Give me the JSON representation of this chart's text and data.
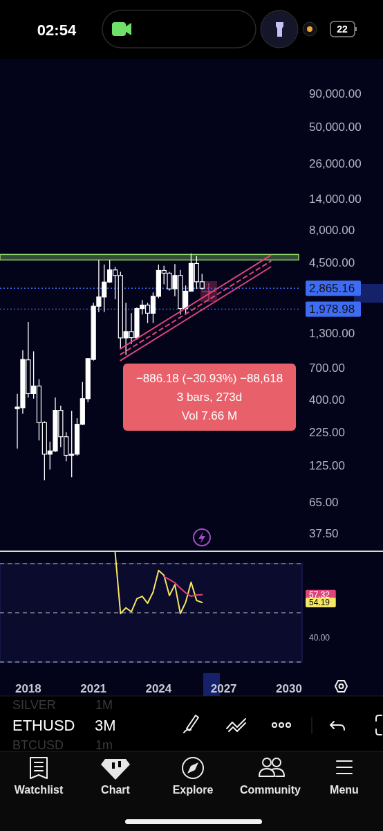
{
  "chart_data": [
    {
      "type": "candlestick",
      "log": true,
      "grid": false,
      "tick_labels": "y",
      "color": "#ffffff",
      "xlim": [
        "2016-09-13",
        "2034-05-01"
      ],
      "ylim": [
        27.3,
        160000
      ],
      "yticks": [
        {
          "value": 90000,
          "label": "90,000.00"
        },
        {
          "value": 50000,
          "label": "50,000.00"
        },
        {
          "value": 26000,
          "label": "26,000.00"
        },
        {
          "value": 14000,
          "label": "14,000.00"
        },
        {
          "value": 8000,
          "label": "8,000.00"
        },
        {
          "value": 4500,
          "label": "4,500.00"
        },
        {
          "value": 1300,
          "label": "1,300.00"
        },
        {
          "value": 700,
          "label": "700.00"
        },
        {
          "value": 400,
          "label": "400.00"
        },
        {
          "value": 225,
          "label": "225.00"
        },
        {
          "value": 125,
          "label": "125.00"
        },
        {
          "value": 65,
          "label": "65.00"
        },
        {
          "value": 37.5,
          "label": "37.50"
        }
      ],
      "x": [
        "2017-07",
        "2017-10",
        "2018-01",
        "2018-04",
        "2018-07",
        "2018-10",
        "2019-01",
        "2019-04",
        "2019-07",
        "2019-10",
        "2020-01",
        "2020-04",
        "2020-07",
        "2020-10",
        "2021-01",
        "2021-04",
        "2021-07",
        "2021-10",
        "2022-01",
        "2022-04",
        "2022-07",
        "2022-10",
        "2023-01",
        "2023-04",
        "2023-07",
        "2023-10",
        "2024-01",
        "2024-04",
        "2024-07",
        "2024-10",
        "2025-01",
        "2025-04",
        "2025-07",
        "2025-10",
        "2026-01"
      ],
      "ohlc": [
        [
          340,
          442,
          168,
          350
        ],
        [
          346,
          957,
          311,
          813
        ],
        [
          807,
          1578,
          414,
          444
        ],
        [
          444,
          938,
          406,
          508
        ],
        [
          508,
          574,
          194,
          266
        ],
        [
          266,
          272,
          96,
          152
        ],
        [
          152,
          190,
          116,
          161
        ],
        [
          161,
          414,
          158,
          330
        ],
        [
          330,
          359,
          172,
          207
        ],
        [
          207,
          224,
          134,
          149
        ],
        [
          149,
          327,
          101,
          152
        ],
        [
          152,
          287,
          148,
          258
        ],
        [
          258,
          547,
          255,
          406
        ],
        [
          406,
          830,
          382,
          825
        ],
        [
          813,
          2216,
          797,
          2085
        ],
        [
          2085,
          4725,
          1882,
          2455
        ],
        [
          2455,
          4354,
          1882,
          3200
        ],
        [
          3200,
          4725,
          3150,
          3964
        ],
        [
          3964,
          4178,
          2355,
          3592
        ],
        [
          3592,
          3837,
          978,
          1190
        ],
        [
          1190,
          2216,
          880,
          1330
        ],
        [
          1330,
          1842,
          1070,
          1195
        ],
        [
          1195,
          2040,
          1150,
          2000
        ],
        [
          2000,
          2328,
          1800,
          2127
        ],
        [
          2127,
          2216,
          1550,
          1842
        ],
        [
          1842,
          2663,
          1550,
          2485
        ],
        [
          2485,
          4354,
          2405,
          3927
        ],
        [
          3927,
          4264,
          3075,
          3742
        ],
        [
          3742,
          3837,
          2750,
          2831
        ],
        [
          2840,
          4406,
          2485,
          3592
        ],
        [
          3592,
          3964,
          1800,
          2000
        ],
        [
          2000,
          3011,
          1812,
          2720
        ],
        [
          2720,
          5300,
          2700,
          4445
        ],
        [
          4445,
          5070,
          2831,
          3215
        ],
        [
          3215,
          3700,
          2800,
          2865
        ]
      ],
      "series": [
        {
          "type": "line",
          "color": "#e0457a",
          "line_style": "solid",
          "x": [
            "2022-04-01",
            "2029-03-01"
          ],
          "values": [
            982,
            5140
          ]
        },
        {
          "type": "line",
          "color": "#e0457a",
          "line_style": "dashed",
          "x": [
            "2022-04-01",
            "2029-03-01"
          ],
          "values": [
            888,
            4630
          ]
        },
        {
          "type": "line",
          "color": "#e0457a",
          "line_style": "solid",
          "x": [
            "2022-04-01",
            "2029-03-01"
          ],
          "values": [
            797,
            4178
          ]
        }
      ],
      "ref_lines": [
        {
          "axis": "y",
          "value": 2865.16,
          "label": "2,865.16",
          "color": "#3f6cf4",
          "line_style": "dotted"
        },
        {
          "axis": "y",
          "value": 1978.98,
          "label": "1,978.98",
          "color": "#3f6cf4",
          "line_style": "dotted"
        }
      ],
      "bands": [
        {
          "axis": "y",
          "from": 4725,
          "to": 5213,
          "color": "#8fd36b"
        }
      ],
      "annotations": [
        "−886.18 (−30.93%) −88,618",
        "3 bars, 273d",
        "Vol 7.66 M"
      ]
    },
    {
      "type": "line",
      "grid": false,
      "line_style": "solid",
      "marker": "none",
      "xlim": [
        "2016-09-13",
        "2034-05-01"
      ],
      "ylim": [
        30,
        75
      ],
      "xticks": [
        {
          "value": "2018",
          "label": "2018"
        },
        {
          "value": "2021",
          "label": "2021"
        },
        {
          "value": "2024",
          "label": "2024"
        },
        {
          "value": "2027",
          "label": "2027"
        },
        {
          "value": "2030",
          "label": "2030"
        }
      ],
      "yticks": [
        {
          "value": 57.32,
          "label": "57.32"
        },
        {
          "value": 54.19,
          "label": "54.19"
        },
        {
          "value": 40,
          "label": "40.00"
        }
      ],
      "x": [
        "2022-01",
        "2022-04",
        "2022-07",
        "2022-10",
        "2023-01",
        "2023-04",
        "2023-07",
        "2023-10",
        "2024-01",
        "2024-04",
        "2024-07",
        "2024-10",
        "2025-01",
        "2025-04",
        "2025-07",
        "2025-10",
        "2026-01"
      ],
      "series": [
        {
          "color": "#f5e663",
          "values": [
            74.5,
            49.7,
            52.0,
            50.4,
            55.7,
            56.7,
            53.9,
            58.4,
            67.2,
            65.2,
            57.0,
            61.4,
            49.7,
            54.3,
            62.4,
            55.0,
            54.19
          ]
        },
        {
          "color": "#e0457a",
          "values": [
            null,
            null,
            null,
            null,
            null,
            null,
            null,
            null,
            null,
            64.7,
            63.5,
            62.2,
            60.0,
            58.1,
            56.7,
            57.2,
            57.32
          ]
        }
      ],
      "ref_lines": [
        {
          "axis": "y",
          "value": 70,
          "color": "#8a8d99",
          "line_style": "dashed"
        },
        {
          "axis": "y",
          "value": 50,
          "color": "#8a8d99",
          "line_style": "dashed"
        },
        {
          "axis": "y",
          "value": 30,
          "color": "#8a8d99",
          "line_style": "dashed"
        }
      ],
      "bands": [
        {
          "axis": "y",
          "from": 30,
          "to": 70,
          "color": "#1c1a55"
        }
      ]
    },
    {
      "type": "other",
      "annotations": [
        "02:54",
        "22",
        "SILVER",
        "1M",
        "ETHUSD",
        "3M",
        "BTCUSD",
        "1m",
        "Watchlist",
        "Chart",
        "Explore",
        "Community",
        "Menu"
      ]
    }
  ]
}
